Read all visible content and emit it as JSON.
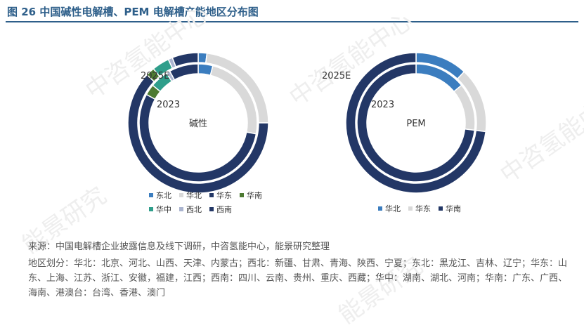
{
  "figure": {
    "title": "图 26 中国碱性电解槽、PEM 电解槽产能地区分布图"
  },
  "chart_data": [
    {
      "type": "donut",
      "center_label": "碱性",
      "ring_labels": {
        "outer": "2025E",
        "inner": "2023"
      },
      "categories": [
        "东北",
        "华北",
        "华东",
        "华南",
        "华中",
        "西北",
        "西南"
      ],
      "colors": [
        "#3b7dbf",
        "#d9d9d9",
        "#233766",
        "#4d7a32",
        "#2f9e8b",
        "#aab4cf",
        "#233766"
      ],
      "series": [
        {
          "name": "2025E",
          "values": [
            2,
            23,
            62,
            2,
            4,
            1,
            6
          ]
        },
        {
          "name": "2023",
          "values": [
            4,
            24,
            55,
            3,
            5,
            1,
            8
          ]
        }
      ]
    },
    {
      "type": "donut",
      "center_label": "PEM",
      "ring_labels": {
        "outer": "2025E",
        "inner": "2023"
      },
      "categories": [
        "华北",
        "华东",
        "华南"
      ],
      "colors": [
        "#3b7dbf",
        "#d9d9d9",
        "#233766"
      ],
      "series": [
        {
          "name": "2025E",
          "values": [
            12,
            15,
            73
          ]
        },
        {
          "name": "2023",
          "values": [
            14,
            13,
            73
          ]
        }
      ]
    }
  ],
  "footer": {
    "source": "来源：中国电解槽企业披露信息及线下调研，中咨氢能中心，能景研究整理",
    "note": "地区划分：华北：北京、河北、山西、天津、内蒙古；西北：新疆、甘肃、青海、陕西、宁夏；东北：黑龙江、吉林、辽宁；华东：山东、上海、江苏、浙江、安徽，福建，江西；西南：四川、云南、贵州、重庆、西藏；华中：湖南、湖北、河南；华南：广东、广西、海南、港澳台：台湾、香港、澳门"
  },
  "watermarks": [
    "中咨氢能中心",
    "能景研究",
    "中咨氢能中心",
    "能景研究",
    "中咨氢能中心"
  ]
}
